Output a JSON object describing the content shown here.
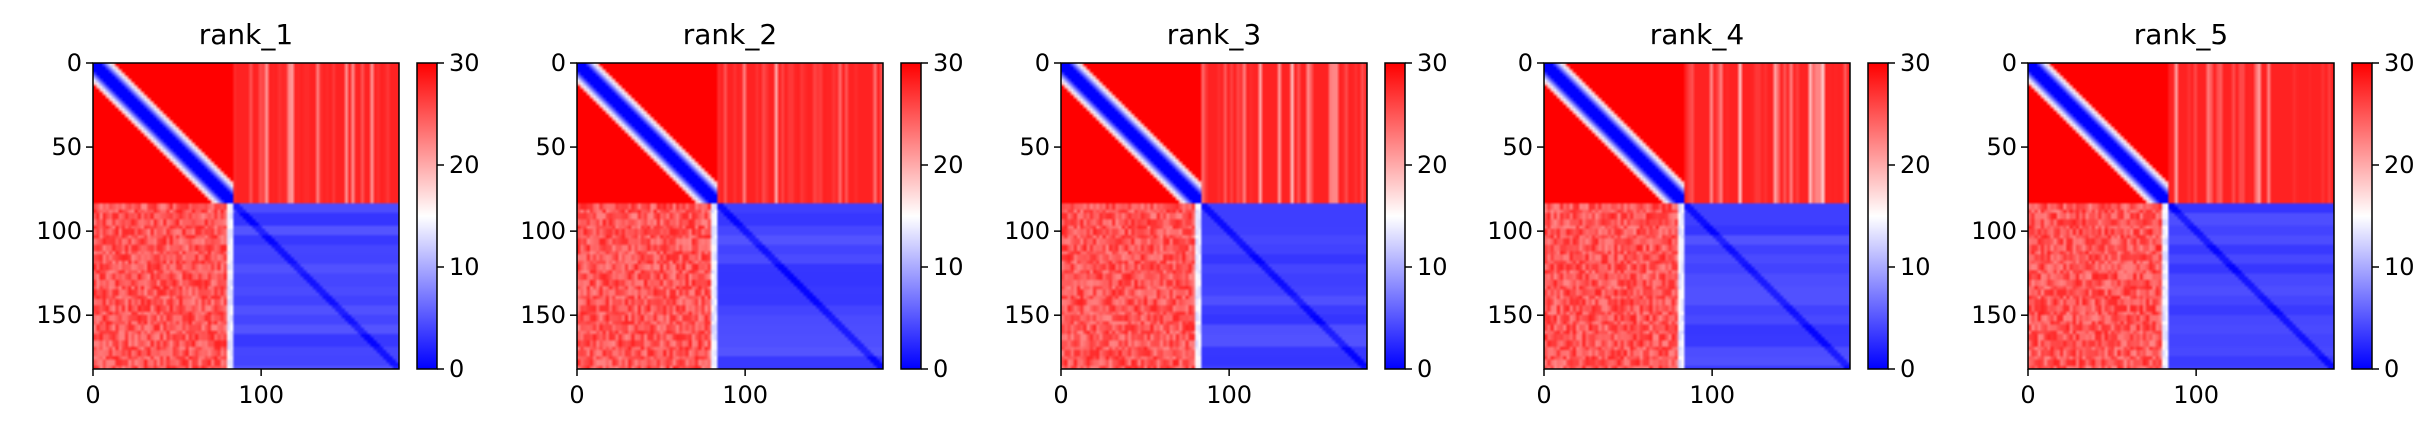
{
  "chart_data": {
    "type": "heatmap",
    "colormap": {
      "name": "bwr",
      "low": "#0000ff",
      "mid": "#ffffff",
      "high": "#ff0000"
    },
    "colorbar": {
      "min": 0,
      "max": 30,
      "ticks": [
        0,
        10,
        20,
        30
      ],
      "tick_labels": [
        "0",
        "10",
        "20",
        "30"
      ]
    },
    "x_range": [
      0,
      182
    ],
    "y_range": [
      0,
      182
    ],
    "x_ticks": [
      0,
      100
    ],
    "x_tick_labels": [
      "0",
      "100"
    ],
    "y_ticks": [
      0,
      50,
      100,
      150
    ],
    "y_tick_labels": [
      "0",
      "50",
      "100",
      "150"
    ],
    "panels": [
      {
        "title": "rank_1",
        "domain_boundary": 84,
        "values": {
          "near_diagonal": 0,
          "within_domain1": 30,
          "between_domains": 28,
          "within_domain2": 3
        }
      },
      {
        "title": "rank_2",
        "domain_boundary": 84,
        "values": {
          "near_diagonal": 0,
          "within_domain1": 30,
          "between_domains": 28,
          "within_domain2": 3
        }
      },
      {
        "title": "rank_3",
        "domain_boundary": 84,
        "values": {
          "near_diagonal": 0,
          "within_domain1": 30,
          "between_domains": 28,
          "within_domain2": 3
        }
      },
      {
        "title": "rank_4",
        "domain_boundary": 84,
        "values": {
          "near_diagonal": 0,
          "within_domain1": 30,
          "between_domains": 28,
          "within_domain2": 3
        }
      },
      {
        "title": "rank_5",
        "domain_boundary": 84,
        "values": {
          "near_diagonal": 0,
          "within_domain1": 30,
          "between_domains": 28,
          "within_domain2": 3
        }
      }
    ]
  }
}
